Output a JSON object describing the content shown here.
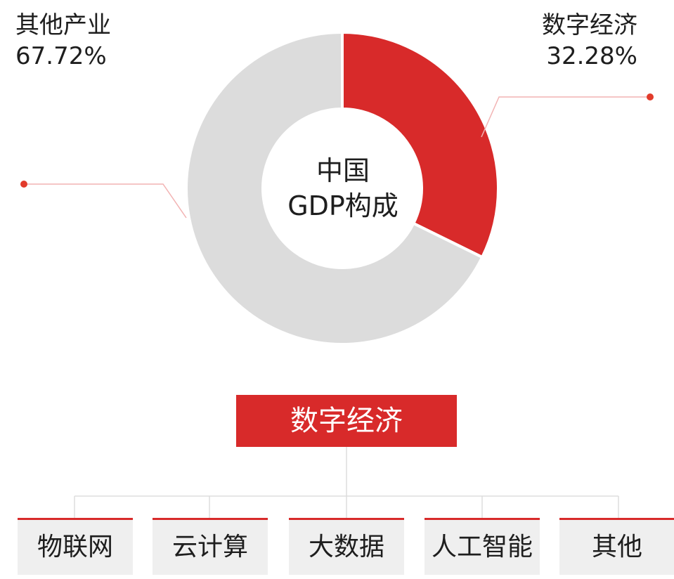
{
  "chart_data": {
    "type": "pie",
    "center_text": [
      "中国",
      "GDP构成"
    ],
    "slices": [
      {
        "label": "数字经济",
        "value": 32.28,
        "display": "32.28%",
        "color": "#d82a2a"
      },
      {
        "label": "其他产业",
        "value": 67.72,
        "display": "67.72%",
        "color": "#dcdcdc"
      }
    ]
  },
  "breakdown": {
    "root": "数字经济",
    "children": [
      "物联网",
      "云计算",
      "大数据",
      "人工智能",
      "其他"
    ]
  },
  "colors": {
    "accent": "#d82a2a",
    "neutral": "#dcdcdc",
    "leaf_bg": "#efefef"
  }
}
